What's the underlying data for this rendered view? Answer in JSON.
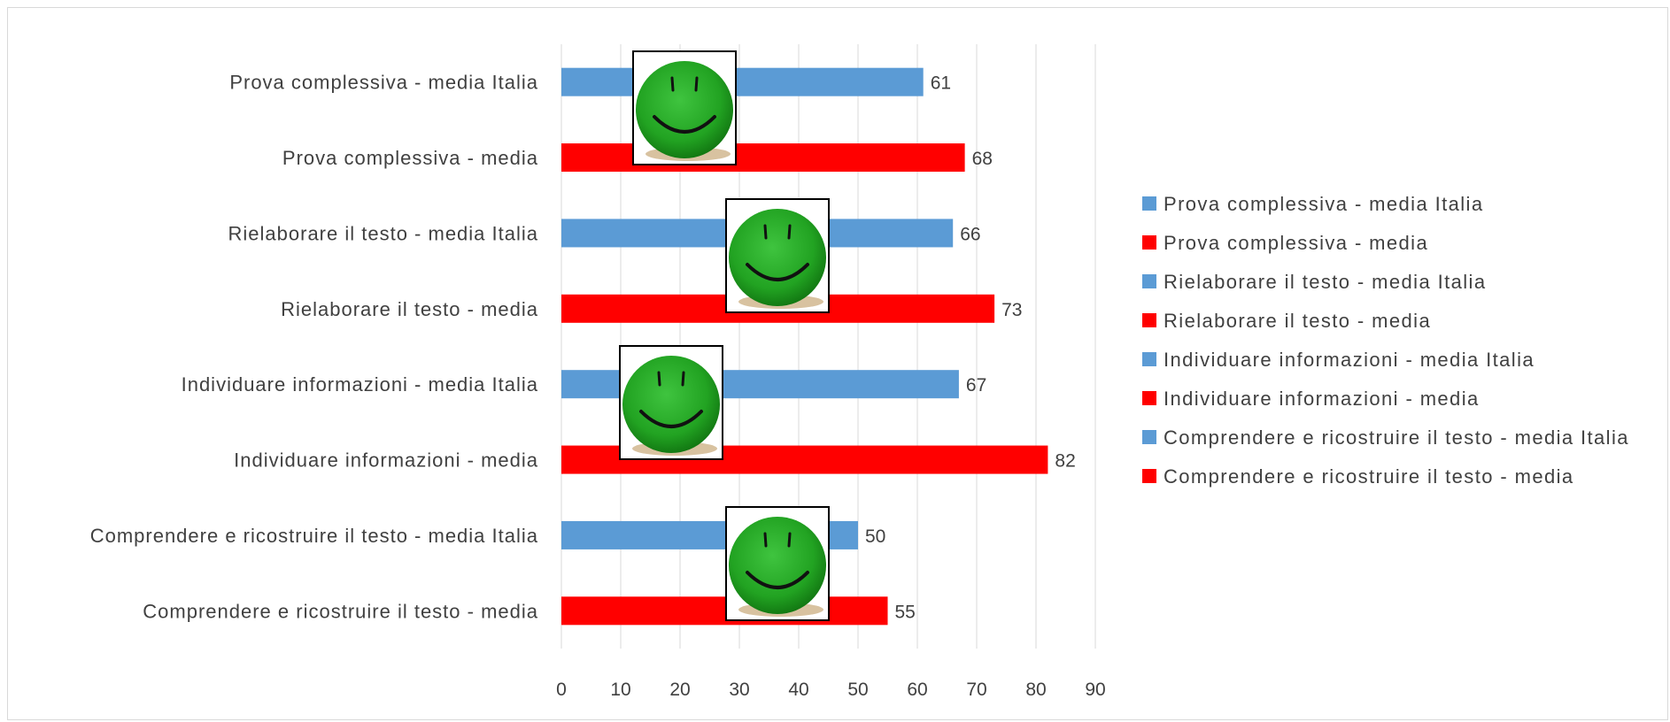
{
  "chart_data": {
    "type": "bar",
    "orientation": "horizontal",
    "title": "",
    "xlabel": "",
    "ylabel": "",
    "xlim": [
      0,
      90
    ],
    "x_ticks": [
      0,
      10,
      20,
      30,
      40,
      50,
      60,
      70,
      80,
      90
    ],
    "grid": "vertical",
    "legend_position": "right",
    "categories": [
      "Prova complessiva - media Italia",
      "Prova complessiva - media",
      "Rielaborare il testo -  media  Italia",
      "Rielaborare il testo -  media",
      "Individuare informazioni -  media Italia",
      "Individuare informazioni -  media",
      "Comprendere e ricostruire il testo - media Italia",
      "Comprendere e ricostruire il testo - media"
    ],
    "values": [
      61,
      68,
      66,
      73,
      67,
      82,
      50,
      55
    ],
    "colors": [
      "#5b9bd5",
      "#ff0000",
      "#5b9bd5",
      "#ff0000",
      "#5b9bd5",
      "#ff0000",
      "#5b9bd5",
      "#ff0000"
    ],
    "legend": [
      {
        "label": "Prova complessiva - media Italia",
        "color": "#5b9bd5"
      },
      {
        "label": "Prova complessiva - media",
        "color": "#ff0000"
      },
      {
        "label": "Rielaborare il testo -  media  Italia",
        "color": "#5b9bd5"
      },
      {
        "label": "Rielaborare il testo -  media",
        "color": "#ff0000"
      },
      {
        "label": "Individuare informazioni -  media Italia",
        "color": "#5b9bd5"
      },
      {
        "label": "Individuare informazioni -  media",
        "color": "#ff0000"
      },
      {
        "label": "Comprendere e ricostruire il testo - media Italia",
        "color": "#5b9bd5"
      },
      {
        "label": "Comprendere e ricostruire il testo - media",
        "color": "#ff0000"
      }
    ],
    "overlays": [
      {
        "icon": "smiley-face-icon",
        "color": "#2ca02c"
      },
      {
        "icon": "smiley-face-icon",
        "color": "#2ca02c"
      },
      {
        "icon": "smiley-face-icon",
        "color": "#2ca02c"
      },
      {
        "icon": "smiley-face-icon",
        "color": "#2ca02c"
      }
    ]
  }
}
